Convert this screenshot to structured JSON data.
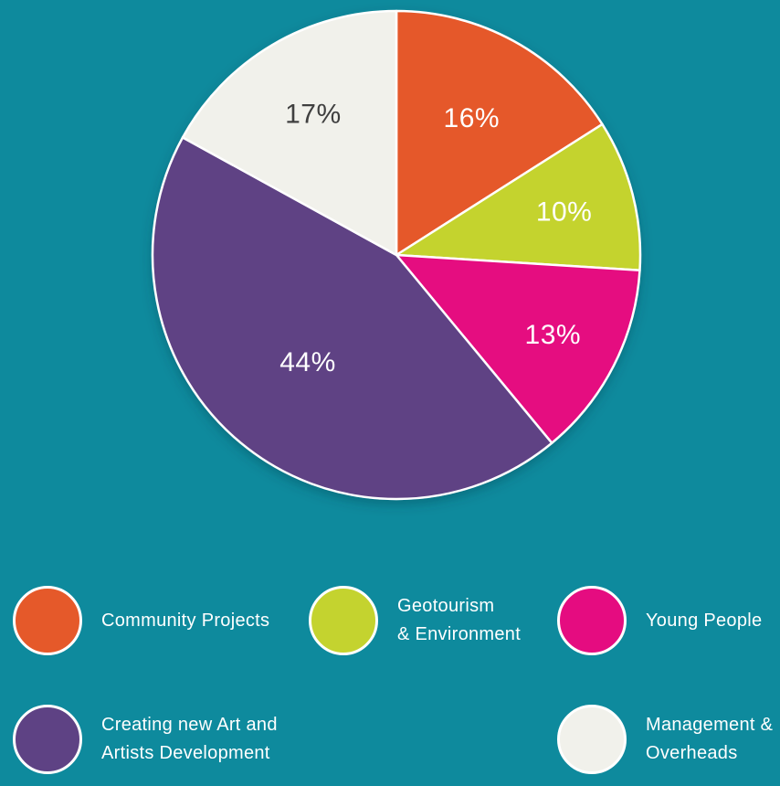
{
  "figure": {
    "background_color": "#0E8A9D"
  },
  "chart_data": {
    "type": "pie",
    "title": "",
    "categories": [
      "Community Projects",
      "Geotourism & Environment",
      "Young People",
      "Creating new Art and Artists Development",
      "Management & Overheads"
    ],
    "values": [
      16,
      10,
      13,
      44,
      17
    ],
    "unit": "%",
    "slice_labels": [
      "16%",
      "10%",
      "13%",
      "44%",
      "17%"
    ],
    "colors": [
      "#E5592A",
      "#C4D32F",
      "#E50C80",
      "#5E4284",
      "#F1F1EB"
    ],
    "slice_label_colors": [
      "#FFFFFF",
      "#FFFFFF",
      "#FFFFFF",
      "#FFFFFF",
      "#3F3F3F"
    ],
    "slice_border_color": "#FFFFFF",
    "start_angle_deg": 0,
    "direction": "clockwise",
    "legend_position": "bottom"
  },
  "legend": {
    "items": [
      {
        "id": "community-projects",
        "color": "#E5592A",
        "lines": [
          "Community Projects"
        ]
      },
      {
        "id": "geotourism-environment",
        "color": "#C4D32F",
        "lines": [
          "Geotourism",
          "& Environment"
        ]
      },
      {
        "id": "young-people",
        "color": "#E50C80",
        "lines": [
          "Young People"
        ]
      },
      {
        "id": "creating-new-art",
        "color": "#5E4284",
        "lines": [
          "Creating new Art and",
          "Artists Development"
        ]
      },
      {
        "id": "management-overheads",
        "color": "#F1F1EB",
        "lines": [
          "Management &",
          "Overheads"
        ]
      }
    ]
  }
}
